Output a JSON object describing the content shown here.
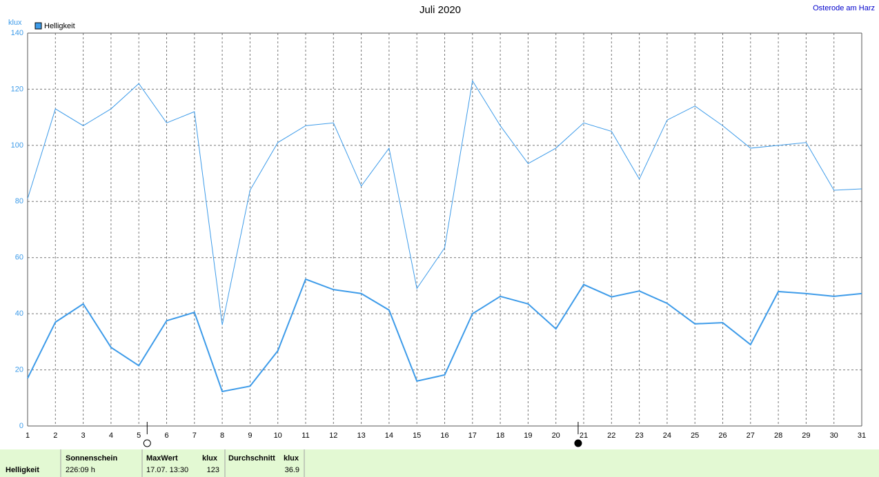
{
  "chart_data": {
    "type": "line",
    "title": "Juli 2020",
    "location": "Osterode am Harz",
    "y_label": "klux",
    "x": [
      1,
      2,
      3,
      4,
      5,
      6,
      7,
      8,
      9,
      10,
      11,
      12,
      13,
      14,
      15,
      16,
      17,
      18,
      19,
      20,
      21,
      22,
      23,
      24,
      25,
      26,
      27,
      28,
      29,
      30,
      31
    ],
    "series": [
      {
        "name": "Helligkeit",
        "color": "#3d9be9",
        "width": 2,
        "values": [
          17,
          37,
          43.5,
          28,
          21.5,
          37.5,
          40.5,
          12.3,
          14.2,
          26.8,
          52.3,
          48.6,
          47.2,
          41.3,
          16,
          18.2,
          40,
          46.2,
          43.5,
          34.6,
          50.4,
          46,
          48.1,
          43.7,
          36.4,
          36.8,
          29,
          47.9,
          47.2,
          46.2,
          47.2
        ]
      },
      {
        "color": "#3d9be9",
        "width": 1,
        "values": [
          81,
          113,
          107,
          113,
          122,
          108,
          112,
          36,
          84,
          101,
          107,
          108,
          85.5,
          99,
          49,
          63.5,
          123,
          107,
          93.5,
          99,
          108,
          105,
          88,
          109,
          114,
          107,
          99,
          100,
          101,
          84,
          84.5
        ]
      }
    ],
    "xlim": [
      1,
      31
    ],
    "xticks": [
      1,
      2,
      3,
      4,
      5,
      6,
      7,
      8,
      9,
      10,
      11,
      12,
      13,
      14,
      15,
      16,
      17,
      18,
      19,
      20,
      21,
      22,
      23,
      24,
      25,
      26,
      27,
      28,
      29,
      30,
      31
    ],
    "ylim": [
      0,
      140
    ],
    "yticks": [
      0,
      20,
      40,
      60,
      80,
      100,
      120,
      140
    ],
    "grid": true,
    "moon_markers": [
      {
        "x": 5.3,
        "fill": "#ffffff"
      },
      {
        "x": 20.8,
        "fill": "#000000"
      }
    ]
  },
  "footer": {
    "row_label": "Helligkeit",
    "sunshine": {
      "label": "Sonnenschein",
      "value": "226:09 h"
    },
    "max": {
      "label": "MaxWert",
      "unit": "klux",
      "date": "17.07.  13:30",
      "value": "123"
    },
    "mean": {
      "label": "Durchschnitt",
      "unit": "klux",
      "value": "36.9"
    }
  }
}
